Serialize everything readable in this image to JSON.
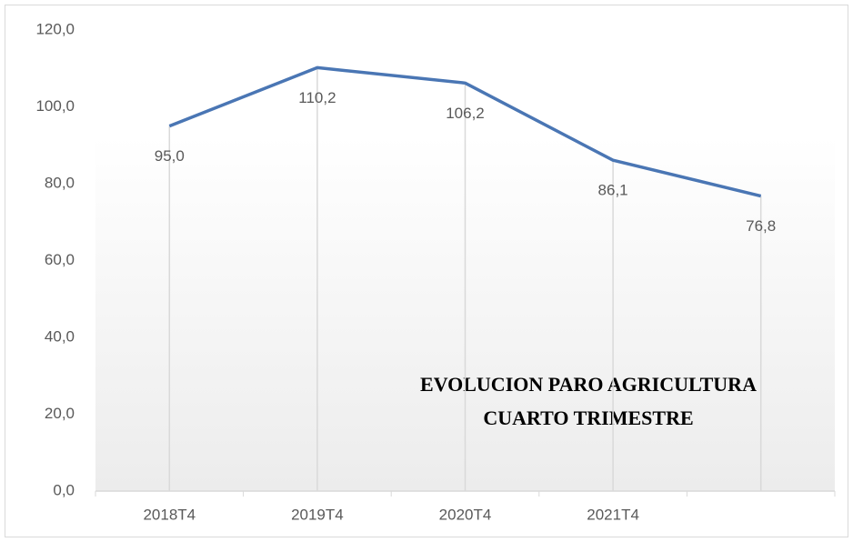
{
  "chart_data": {
    "type": "line",
    "title": [
      "EVOLUCION PARO AGRICULTURA",
      "CUARTO TRIMESTRE"
    ],
    "categories": [
      "2018T4",
      "2019T4",
      "2020T4",
      "2021T4",
      null
    ],
    "series": [
      {
        "color": "#4a76b4",
        "values": [
          95.0,
          110.2,
          106.2,
          86.1,
          76.8
        ],
        "value_labels": [
          "95,0",
          "110,2",
          "106,2",
          "86,1",
          "76,8"
        ]
      }
    ],
    "ylim": [
      0,
      120
    ],
    "yticks": [
      {
        "value": 0,
        "label": "0,0"
      },
      {
        "value": 20,
        "label": "20,0"
      },
      {
        "value": 40,
        "label": "40,0"
      },
      {
        "value": 60,
        "label": "60,0"
      },
      {
        "value": 80,
        "label": "80,0"
      },
      {
        "value": 100,
        "label": "100,0"
      },
      {
        "value": 120,
        "label": "120,0"
      }
    ],
    "drop_lines": true
  }
}
